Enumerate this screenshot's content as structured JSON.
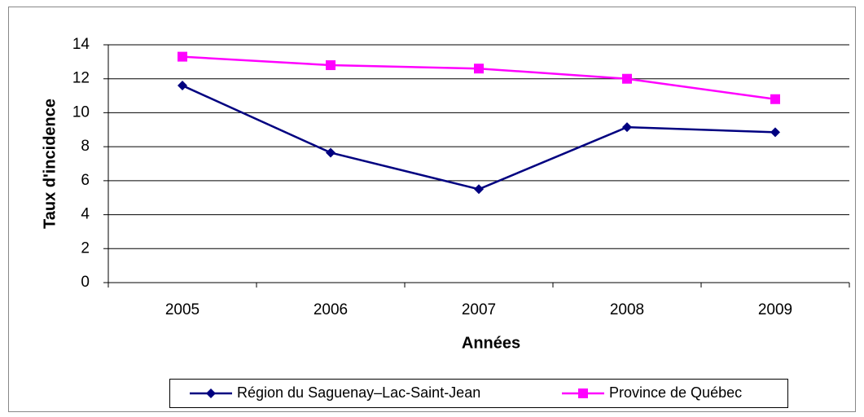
{
  "chart_data": {
    "type": "line",
    "categories": [
      "2005",
      "2006",
      "2007",
      "2008",
      "2009"
    ],
    "series": [
      {
        "name": "Région du Saguenay–Lac-Saint-Jean",
        "color": "#000080",
        "marker": "diamond",
        "values": [
          11.6,
          7.65,
          5.5,
          9.15,
          8.85
        ]
      },
      {
        "name": "Province de Québec",
        "color": "#ff00ff",
        "marker": "square",
        "values": [
          13.3,
          12.8,
          12.6,
          12.0,
          10.8
        ]
      }
    ],
    "xlabel": "Années",
    "ylabel": "Taux d'incidence",
    "ylim": [
      0,
      14
    ],
    "yticks": [
      0,
      2,
      4,
      6,
      8,
      10,
      12,
      14
    ],
    "grid": true,
    "legend": "bottom"
  }
}
